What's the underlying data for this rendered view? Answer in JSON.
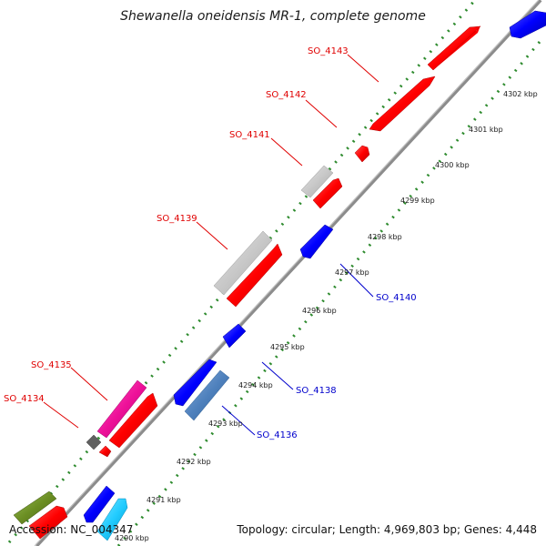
{
  "title": "Shewanella oneidensis MR-1, complete genome",
  "footer": {
    "accession": "Accession: NC_004347",
    "summary": "Topology: circular; Length: 4,969,803 bp; Genes: 4,448"
  },
  "colors": {
    "backbone": "#8c8c8c",
    "tick_dots": "#2e8b2e",
    "label_red": "#e00000",
    "label_blue": "#0000cc"
  },
  "kbp_ticks": [
    "4290 kbp",
    "4291 kbp",
    "4292 kbp",
    "4293 kbp",
    "4294 kbp",
    "4295 kbp",
    "4296 kbp",
    "4297 kbp",
    "4298 kbp",
    "4299 kbp",
    "4300 kbp",
    "4301 kbp",
    "4302 kbp"
  ],
  "gene_labels": [
    {
      "id": "SO_4143",
      "strand": "forward",
      "color": "#e00000"
    },
    {
      "id": "SO_4142",
      "strand": "forward",
      "color": "#e00000"
    },
    {
      "id": "SO_4141",
      "strand": "forward",
      "color": "#e00000"
    },
    {
      "id": "SO_4139",
      "strand": "forward",
      "color": "#e00000"
    },
    {
      "id": "SO_4135",
      "strand": "forward",
      "color": "#e00000"
    },
    {
      "id": "SO_4134",
      "strand": "forward",
      "color": "#e00000"
    },
    {
      "id": "SO_4140",
      "strand": "reverse",
      "color": "#0000cc"
    },
    {
      "id": "SO_4138",
      "strand": "reverse",
      "color": "#0000cc"
    },
    {
      "id": "SO_4136",
      "strand": "reverse",
      "color": "#0000cc"
    }
  ],
  "features": [
    {
      "kind": "red-gene",
      "color": "#ff0000"
    },
    {
      "kind": "grey-gene",
      "color": "#c8c8c8"
    },
    {
      "kind": "blue-gene",
      "color": "#0000ff"
    },
    {
      "kind": "steel-gene",
      "color": "#4f81bd"
    },
    {
      "kind": "magenta-gene",
      "color": "#ee1199"
    },
    {
      "kind": "dark-grey-gene",
      "color": "#606060"
    },
    {
      "kind": "cyan-gene",
      "color": "#22ccff"
    },
    {
      "kind": "olive-gene",
      "color": "#6b8e23"
    }
  ]
}
